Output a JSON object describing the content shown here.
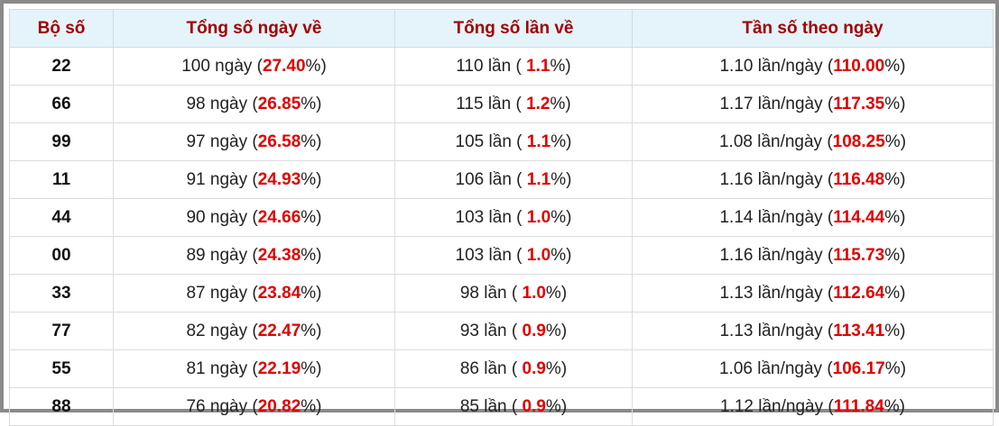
{
  "table": {
    "header": [
      "Bộ số",
      "Tổng số ngày về",
      "Tổng số lần về",
      "Tần số theo ngày"
    ],
    "rows": [
      [
        "22",
        [
          "100 ngày (",
          "27.40",
          "%)"
        ],
        [
          "110 lần ( ",
          "1.1",
          "%)"
        ],
        [
          "1.10 lần/ngày (",
          "110.00",
          "%)"
        ]
      ],
      [
        "66",
        [
          "98 ngày (",
          "26.85",
          "%)"
        ],
        [
          "115 lần ( ",
          "1.2",
          "%)"
        ],
        [
          "1.17 lần/ngày (",
          "117.35",
          "%)"
        ]
      ],
      [
        "99",
        [
          "97 ngày (",
          "26.58",
          "%)"
        ],
        [
          "105 lần ( ",
          "1.1",
          "%)"
        ],
        [
          "1.08 lần/ngày (",
          "108.25",
          "%)"
        ]
      ],
      [
        "11",
        [
          "91 ngày (",
          "24.93",
          "%)"
        ],
        [
          "106 lần ( ",
          "1.1",
          "%)"
        ],
        [
          "1.16 lần/ngày (",
          "116.48",
          "%)"
        ]
      ],
      [
        "44",
        [
          "90 ngày (",
          "24.66",
          "%)"
        ],
        [
          "103 lần ( ",
          "1.0",
          "%)"
        ],
        [
          "1.14 lần/ngày (",
          "114.44",
          "%)"
        ]
      ],
      [
        "00",
        [
          "89 ngày (",
          "24.38",
          "%)"
        ],
        [
          "103 lần ( ",
          "1.0",
          "%)"
        ],
        [
          "1.16 lần/ngày (",
          "115.73",
          "%)"
        ]
      ],
      [
        "33",
        [
          "87 ngày (",
          "23.84",
          "%)"
        ],
        [
          "98 lần ( ",
          "1.0",
          "%)"
        ],
        [
          "1.13 lần/ngày (",
          "112.64",
          "%)"
        ]
      ],
      [
        "77",
        [
          "82 ngày (",
          "22.47",
          "%)"
        ],
        [
          "93 lần ( ",
          "0.9",
          "%)"
        ],
        [
          "1.13 lần/ngày (",
          "113.41",
          "%)"
        ]
      ],
      [
        "55",
        [
          "81 ngày (",
          "22.19",
          "%)"
        ],
        [
          "86 lần ( ",
          "0.9",
          "%)"
        ],
        [
          "1.06 lần/ngày (",
          "106.17",
          "%)"
        ]
      ],
      [
        "88",
        [
          "76 ngày (",
          "20.82",
          "%)"
        ],
        [
          "85 lần ( ",
          "0.9",
          "%)"
        ],
        [
          "1.12 lần/ngày (",
          "111.84",
          "%)"
        ]
      ]
    ]
  }
}
